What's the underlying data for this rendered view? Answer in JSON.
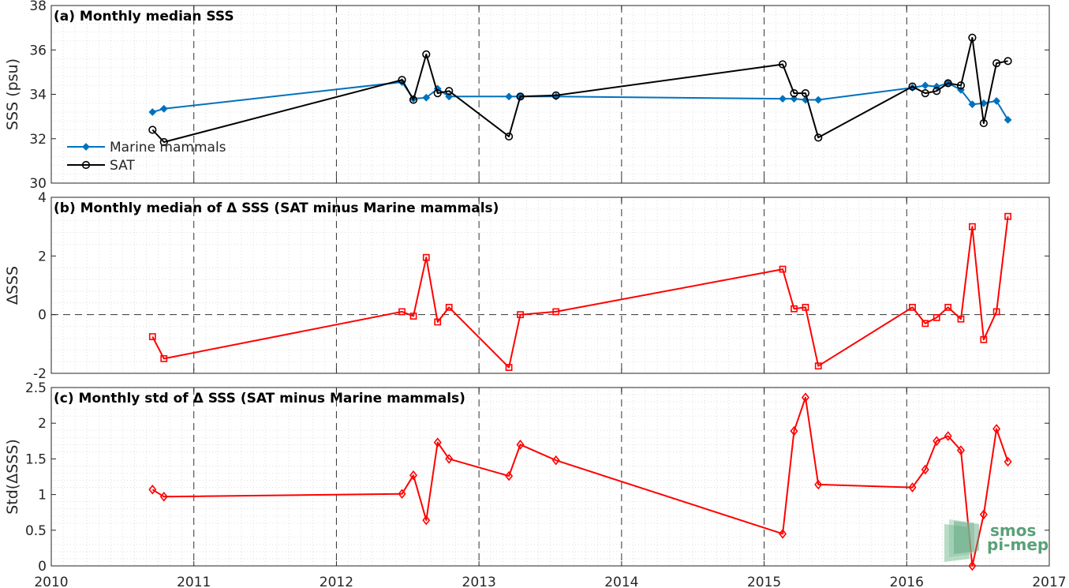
{
  "logo": {
    "line1": "smos",
    "line2": "pi-mep",
    "color": "#5aa07a"
  },
  "colors": {
    "marine": "#0072BD",
    "sat": "#000000",
    "diff": "#ff0000"
  },
  "x_axis": {
    "xlim": [
      2010,
      2017
    ],
    "ticks": [
      "2010",
      "2011",
      "2012",
      "2013",
      "2014",
      "2015",
      "2016",
      "2017"
    ]
  },
  "chart_data": [
    {
      "type": "line",
      "title": "(a) Monthly median SSS",
      "ylabel": "SSS (psu)",
      "ylim": [
        30,
        38
      ],
      "yticks": [
        "30",
        "32",
        "34",
        "36",
        "38"
      ],
      "legend": {
        "placement": "bottom-left",
        "entries": [
          "Marine mammals",
          "SAT"
        ]
      },
      "series": [
        {
          "name": "Marine mammals",
          "color": "#0072BD",
          "marker": "diamond-filled",
          "x": [
            2010.71,
            2010.79,
            2012.46,
            2012.54,
            2012.63,
            2012.71,
            2012.79,
            2013.21,
            2013.29,
            2013.54,
            2015.13,
            2015.21,
            2015.29,
            2015.38,
            2016.04,
            2016.13,
            2016.21,
            2016.29,
            2016.38,
            2016.46,
            2016.54,
            2016.63,
            2016.71
          ],
          "y": [
            33.2,
            33.35,
            34.55,
            33.8,
            33.85,
            34.25,
            33.9,
            33.9,
            33.9,
            33.9,
            33.8,
            33.8,
            33.75,
            33.75,
            34.3,
            34.4,
            34.35,
            34.5,
            34.2,
            33.55,
            33.6,
            33.7,
            32.85
          ]
        },
        {
          "name": "SAT",
          "color": "#000000",
          "marker": "circle-open",
          "x": [
            2010.71,
            2010.79,
            2012.46,
            2012.54,
            2012.63,
            2012.71,
            2012.79,
            2013.21,
            2013.29,
            2013.54,
            2015.13,
            2015.21,
            2015.29,
            2015.38,
            2016.04,
            2016.13,
            2016.21,
            2016.29,
            2016.38,
            2016.46,
            2016.54,
            2016.63,
            2016.71
          ],
          "y": [
            32.4,
            31.85,
            34.65,
            33.75,
            35.8,
            34.05,
            34.15,
            32.1,
            33.9,
            33.95,
            35.35,
            34.05,
            34.05,
            32.05,
            34.35,
            34.05,
            34.15,
            34.5,
            34.4,
            36.55,
            32.7,
            35.4,
            35.5
          ]
        }
      ]
    },
    {
      "type": "line",
      "title": "(b) Monthly median of Δ SSS (SAT minus Marine mammals)",
      "ylabel": "ΔSSS",
      "ylim": [
        -2,
        4
      ],
      "yticks": [
        "-2",
        "0",
        "2",
        "4"
      ],
      "reference_line": 0,
      "series": [
        {
          "color": "#ff0000",
          "marker": "square-open",
          "x": [
            2010.71,
            2010.79,
            2012.46,
            2012.54,
            2012.63,
            2012.71,
            2012.79,
            2013.21,
            2013.29,
            2013.54,
            2015.13,
            2015.21,
            2015.29,
            2015.38,
            2016.04,
            2016.13,
            2016.21,
            2016.29,
            2016.38,
            2016.46,
            2016.54,
            2016.63,
            2016.71
          ],
          "y": [
            -0.75,
            -1.5,
            0.1,
            -0.05,
            1.95,
            -0.25,
            0.25,
            -1.8,
            0.0,
            0.1,
            1.55,
            0.2,
            0.25,
            -1.75,
            0.25,
            -0.3,
            -0.1,
            0.25,
            -0.15,
            3.0,
            -0.85,
            0.1,
            3.35
          ]
        }
      ]
    },
    {
      "type": "line",
      "title": "(c) Monthly std of Δ SSS (SAT minus Marine mammals)",
      "ylabel": "Std(ΔSSS)",
      "ylim": [
        0,
        2.5
      ],
      "yticks": [
        "0",
        "0.5",
        "1",
        "1.5",
        "2",
        "2.5"
      ],
      "series": [
        {
          "color": "#ff0000",
          "marker": "diamond-open",
          "x": [
            2010.71,
            2010.79,
            2012.46,
            2012.54,
            2012.63,
            2012.71,
            2012.79,
            2013.21,
            2013.29,
            2013.54,
            2015.13,
            2015.21,
            2015.29,
            2015.38,
            2016.04,
            2016.13,
            2016.21,
            2016.29,
            2016.38,
            2016.46,
            2016.54,
            2016.63,
            2016.71
          ],
          "y": [
            1.07,
            0.97,
            1.01,
            1.27,
            0.64,
            1.73,
            1.5,
            1.26,
            1.7,
            1.48,
            0.45,
            1.89,
            2.36,
            1.14,
            1.1,
            1.35,
            1.75,
            1.82,
            1.62,
            0.0,
            0.72,
            1.92,
            1.46
          ]
        }
      ]
    }
  ]
}
